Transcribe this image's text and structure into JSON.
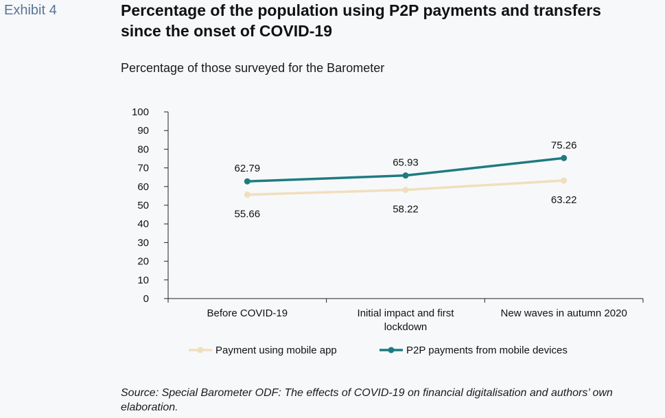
{
  "exhibit_label": "Exhibit 4",
  "title": "Percentage of the population using P2P payments and transfers since the onset of COVID-19",
  "subtitle": "Percentage of those surveyed for the Barometer",
  "source": "Source: Special Barometer ODF: The effects of COVID-19 on financial digitalisation and authors’ own elaboration.",
  "colors": {
    "mobile_app": "#f0dfbc",
    "p2p": "#1e7b80",
    "axis": "#222222"
  },
  "chart_data": {
    "type": "line",
    "categories": [
      [
        "Before COVID-19"
      ],
      [
        "Initial impact and first",
        "lockdown"
      ],
      [
        "New waves in autumn 2020"
      ]
    ],
    "ylim": [
      0,
      100
    ],
    "yticks": [
      0,
      10,
      20,
      30,
      40,
      50,
      60,
      70,
      80,
      90,
      100
    ],
    "grid": false,
    "legend_position": "bottom",
    "series": [
      {
        "name": "Payment using mobile app",
        "values": [
          55.66,
          58.22,
          63.22
        ],
        "labels": [
          "55.66",
          "58.22",
          "63.22"
        ],
        "label_position": "below",
        "color": "#f0dfbc"
      },
      {
        "name": "P2P payments from mobile devices",
        "values": [
          62.79,
          65.93,
          75.26
        ],
        "labels": [
          "62.79",
          "65.93",
          "75.26"
        ],
        "label_position": "above",
        "color": "#1e7b80"
      }
    ]
  }
}
